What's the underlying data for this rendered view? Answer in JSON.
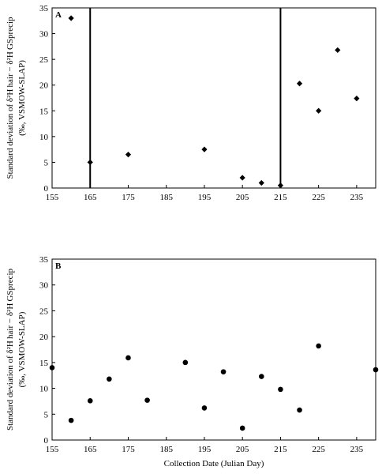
{
  "chart_data": [
    {
      "type": "scatter",
      "panel_label": "A",
      "ylabel_lines": [
        "Standard deviation of δ²H hair − δ²H GSprecip",
        "(‰, VSMOW-SLAP)"
      ],
      "xlabel": "",
      "xlim": [
        155,
        240
      ],
      "ylim": [
        0,
        35
      ],
      "x_ticks": [
        155,
        165,
        175,
        185,
        195,
        205,
        215,
        225,
        235
      ],
      "y_ticks": [
        0,
        5,
        10,
        15,
        20,
        25,
        30,
        35
      ],
      "marker": "diamond",
      "vertical_lines": [
        165,
        215
      ],
      "grid": false,
      "points": [
        {
          "x": 160,
          "y": 33.0
        },
        {
          "x": 165,
          "y": 5.0
        },
        {
          "x": 175,
          "y": 6.5
        },
        {
          "x": 195,
          "y": 7.5
        },
        {
          "x": 205,
          "y": 2.0
        },
        {
          "x": 210,
          "y": 1.0
        },
        {
          "x": 215,
          "y": 0.5
        },
        {
          "x": 220,
          "y": 20.3
        },
        {
          "x": 225,
          "y": 15.0
        },
        {
          "x": 230,
          "y": 26.8
        },
        {
          "x": 235,
          "y": 17.4
        }
      ]
    },
    {
      "type": "scatter",
      "panel_label": "B",
      "ylabel_lines": [
        "Standard deviation of δ²H hair − δ²H GSprecip",
        "(‰, VSMOW-SLAP)"
      ],
      "xlabel": "Collection Date (Julian Day)",
      "xlim": [
        155,
        240
      ],
      "ylim": [
        0,
        35
      ],
      "x_ticks": [
        155,
        165,
        175,
        185,
        195,
        205,
        215,
        225,
        235
      ],
      "y_ticks": [
        0,
        5,
        10,
        15,
        20,
        25,
        30,
        35
      ],
      "marker": "circle",
      "vertical_lines": [],
      "grid": false,
      "points": [
        {
          "x": 155,
          "y": 14.0
        },
        {
          "x": 160,
          "y": 3.8
        },
        {
          "x": 165,
          "y": 7.6
        },
        {
          "x": 170,
          "y": 11.8
        },
        {
          "x": 175,
          "y": 15.9
        },
        {
          "x": 180,
          "y": 7.7
        },
        {
          "x": 190,
          "y": 15.0
        },
        {
          "x": 195,
          "y": 6.2
        },
        {
          "x": 200,
          "y": 13.2
        },
        {
          "x": 205,
          "y": 2.3
        },
        {
          "x": 210,
          "y": 12.3
        },
        {
          "x": 215,
          "y": 9.8
        },
        {
          "x": 220,
          "y": 5.8
        },
        {
          "x": 225,
          "y": 18.2
        },
        {
          "x": 240,
          "y": 13.6
        }
      ]
    }
  ]
}
